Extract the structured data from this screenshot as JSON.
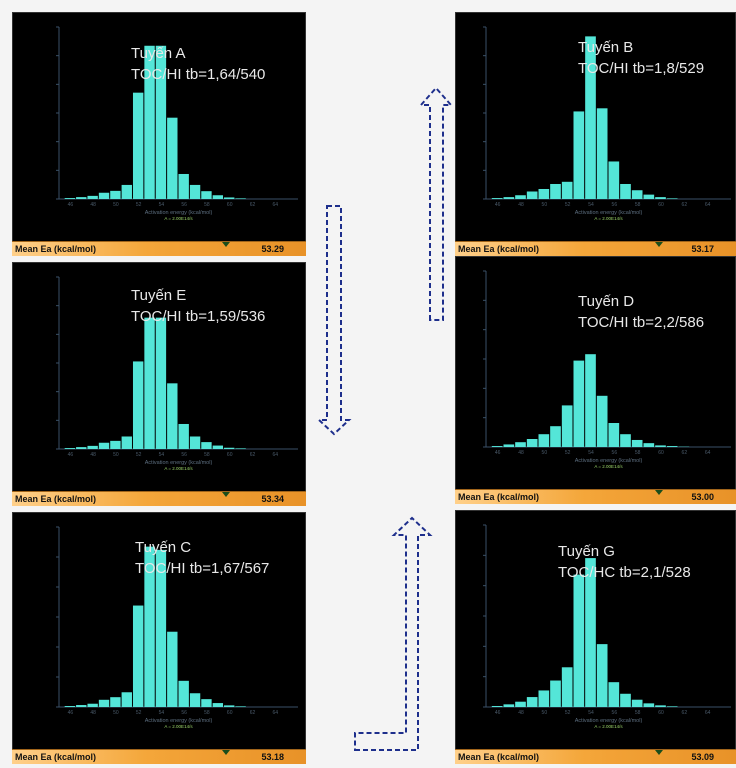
{
  "panels_meta": {
    "mean_label": "Mean Ea (kcal/mol)",
    "x_axis_label": "Activation energy (kcal/mol)",
    "x_axis_sub": "A = 2.00E14/s"
  },
  "chart_data": [
    {
      "type": "bar",
      "id": "A",
      "annotation_line1": "Tuyến A",
      "annotation_line2": "TOC/HI tb=1,64/540",
      "mean_ea": "53.29",
      "categories": [
        46,
        47,
        48,
        49,
        50,
        51,
        52,
        53,
        54,
        55,
        56,
        57,
        58,
        59,
        60,
        61,
        62,
        63,
        64,
        65
      ],
      "values": [
        0.3,
        0.6,
        1.0,
        2.0,
        2.6,
        4.5,
        34,
        49,
        49,
        26,
        8,
        4.5,
        2.5,
        1.2,
        0.5,
        0.2,
        0,
        0,
        0,
        0
      ],
      "ylim": [
        0,
        55
      ]
    },
    {
      "type": "bar",
      "id": "B",
      "annotation_line1": "Tuyến B",
      "annotation_line2": "TOC/HI tb=1,8/529",
      "mean_ea": "53.17",
      "categories": [
        46,
        47,
        48,
        49,
        50,
        51,
        52,
        53,
        54,
        55,
        56,
        57,
        58,
        59,
        60,
        61,
        62,
        63,
        64,
        65
      ],
      "values": [
        0.3,
        0.6,
        1.2,
        2.4,
        3.2,
        4.8,
        5.5,
        28,
        52,
        29,
        12,
        4.8,
        2.8,
        1.4,
        0.6,
        0.2,
        0,
        0,
        0,
        0
      ],
      "ylim": [
        0,
        55
      ]
    },
    {
      "type": "bar",
      "id": "E",
      "annotation_line1": "Tuyến E",
      "annotation_line2": "TOC/HI tb=1,59/536",
      "mean_ea": "53.34",
      "categories": [
        46,
        47,
        48,
        49,
        50,
        51,
        52,
        53,
        54,
        55,
        56,
        57,
        58,
        59,
        60,
        61,
        62,
        63,
        64,
        65
      ],
      "values": [
        0.3,
        0.6,
        1.0,
        2.0,
        2.6,
        4.0,
        28,
        42,
        42,
        21,
        8,
        4.0,
        2.2,
        1.1,
        0.4,
        0.2,
        0,
        0,
        0,
        0
      ],
      "ylim": [
        0,
        55
      ]
    },
    {
      "type": "bar",
      "id": "D",
      "annotation_line1": "Tuyến D",
      "annotation_line2": "TOC/HI tb=2,2/586",
      "mean_ea": "53.00",
      "categories": [
        46,
        47,
        48,
        49,
        50,
        51,
        52,
        53,
        54,
        55,
        56,
        57,
        58,
        59,
        60,
        61,
        62,
        63,
        64,
        65
      ],
      "values": [
        0.3,
        0.8,
        1.5,
        2.5,
        4.0,
        6.5,
        13,
        27,
        29,
        16,
        7.5,
        4.0,
        2.2,
        1.2,
        0.5,
        0.3,
        0.1,
        0,
        0,
        0
      ],
      "ylim": [
        0,
        55
      ]
    },
    {
      "type": "bar",
      "id": "C",
      "annotation_line1": "Tuyến C",
      "annotation_line2": "TOC/HI tb=1,67/567",
      "mean_ea": "53.18",
      "categories": [
        46,
        47,
        48,
        49,
        50,
        51,
        52,
        53,
        54,
        55,
        56,
        57,
        58,
        59,
        60,
        61,
        62,
        63,
        64,
        65
      ],
      "values": [
        0.3,
        0.6,
        1.0,
        2.2,
        3.0,
        4.5,
        31,
        49,
        48,
        23,
        8,
        4.2,
        2.4,
        1.2,
        0.5,
        0.2,
        0,
        0,
        0,
        0
      ],
      "ylim": [
        0,
        55
      ]
    },
    {
      "type": "bar",
      "id": "G",
      "annotation_line1": "Tuyến G",
      "annotation_line2": "TOC/HC tb=2,1/528",
      "mean_ea": "53.09",
      "categories": [
        46,
        47,
        48,
        49,
        50,
        51,
        52,
        53,
        54,
        55,
        56,
        57,
        58,
        59,
        60,
        61,
        62,
        63,
        64,
        65
      ],
      "values": [
        0.3,
        0.8,
        1.6,
        3.0,
        5.0,
        8.0,
        12,
        40,
        45,
        19,
        7.5,
        4.0,
        2.2,
        1.1,
        0.5,
        0.2,
        0,
        0,
        0,
        0
      ],
      "ylim": [
        0,
        55
      ]
    }
  ],
  "colors": {
    "bar": "#54e6d8",
    "axis": "#3a5168",
    "arrow": "#1e2f8c",
    "plot_bg": "#000000"
  }
}
